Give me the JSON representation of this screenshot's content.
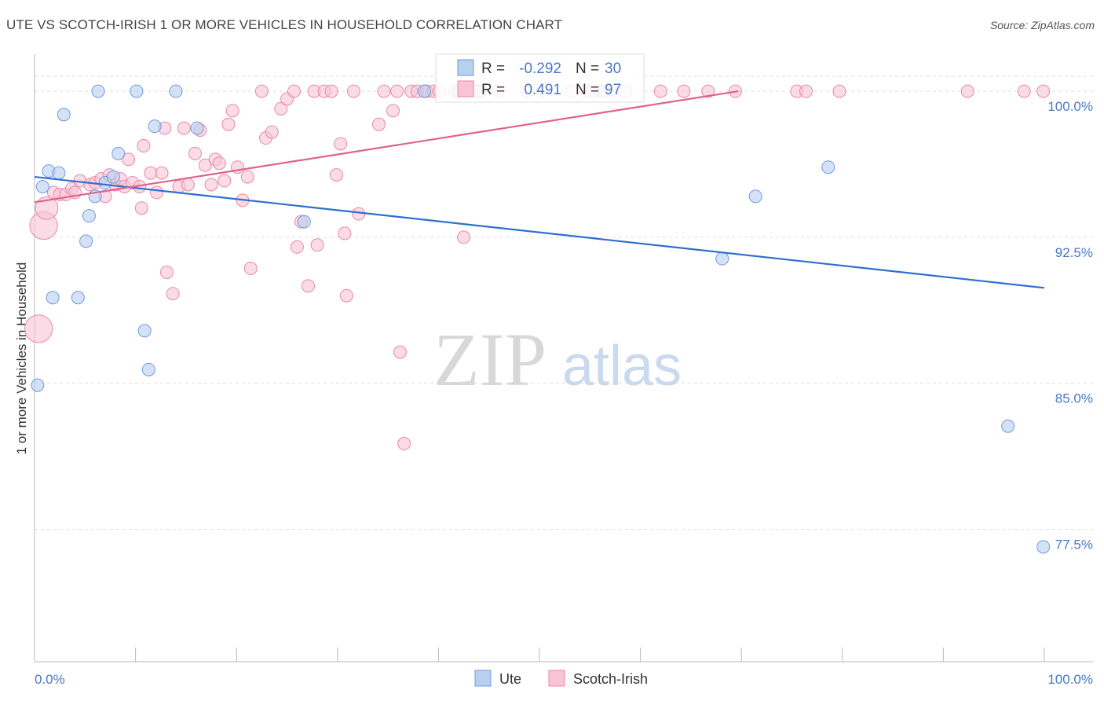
{
  "title": "UTE VS SCOTCH-IRISH 1 OR MORE VEHICLES IN HOUSEHOLD CORRELATION CHART",
  "source": "Source: ZipAtlas.com",
  "watermark": {
    "zip": "ZIP",
    "atlas": "atlas"
  },
  "colors": {
    "ute": "#6f9be0",
    "ute_fill": "#b9cff0",
    "ute_line": "#2e6fd0",
    "scotch": "#e889aa",
    "scotch_fill": "#f7c3d5",
    "scotch_line": "#e0628f",
    "grid": "#dddddd",
    "axis_text": "#4a78c7"
  },
  "legend": {
    "rows": [
      {
        "r_label": "R =",
        "r_value": "-0.292",
        "n_label": "N =",
        "n_value": "30"
      },
      {
        "r_label": "R =",
        "r_value": "0.491",
        "n_label": "N =",
        "n_value": "97"
      }
    ]
  },
  "chart_data": {
    "type": "scatter",
    "title": "UTE VS SCOTCH-IRISH 1 OR MORE VEHICLES IN HOUSEHOLD CORRELATION CHART",
    "xlabel": "",
    "ylabel": "1 or more Vehicles in Household",
    "xlim": [
      0,
      100
    ],
    "ylim": [
      70.7,
      101.9
    ],
    "x_tick_labels": [
      "0.0%",
      "100.0%"
    ],
    "y_ticks": [
      77.5,
      85.0,
      92.5,
      100.0
    ],
    "y_tick_labels": [
      "77.5%",
      "85.0%",
      "92.5%",
      "100.0%"
    ],
    "grid": true,
    "legend_position": "bottom-center",
    "series": [
      {
        "name": "Ute",
        "trend": {
          "x": [
            0,
            100
          ],
          "y": [
            95.6,
            89.9
          ]
        },
        "points": [
          {
            "x": 0.3,
            "y": 84.9,
            "s": 1
          },
          {
            "x": 0.8,
            "y": 95.1,
            "s": 1
          },
          {
            "x": 1.4,
            "y": 95.9,
            "s": 1
          },
          {
            "x": 2.4,
            "y": 95.8,
            "s": 1
          },
          {
            "x": 1.8,
            "y": 89.4,
            "s": 1
          },
          {
            "x": 2.9,
            "y": 98.8,
            "s": 1
          },
          {
            "x": 5.1,
            "y": 92.3,
            "s": 1
          },
          {
            "x": 5.4,
            "y": 93.6,
            "s": 1
          },
          {
            "x": 4.3,
            "y": 89.4,
            "s": 1
          },
          {
            "x": 6.0,
            "y": 94.6,
            "s": 1
          },
          {
            "x": 6.3,
            "y": 100.0,
            "s": 1
          },
          {
            "x": 7.0,
            "y": 95.3,
            "s": 1
          },
          {
            "x": 7.8,
            "y": 95.6,
            "s": 1
          },
          {
            "x": 8.3,
            "y": 96.8,
            "s": 1
          },
          {
            "x": 10.1,
            "y": 100.0,
            "s": 1
          },
          {
            "x": 10.9,
            "y": 87.7,
            "s": 1
          },
          {
            "x": 11.3,
            "y": 85.7,
            "s": 1
          },
          {
            "x": 11.9,
            "y": 98.2,
            "s": 1
          },
          {
            "x": 14.0,
            "y": 100.0,
            "s": 1
          },
          {
            "x": 16.1,
            "y": 98.1,
            "s": 1
          },
          {
            "x": 26.7,
            "y": 93.3,
            "s": 1
          },
          {
            "x": 38.6,
            "y": 100.0,
            "s": 1
          },
          {
            "x": 42.0,
            "y": 100.0,
            "s": 1
          },
          {
            "x": 43.9,
            "y": 100.0,
            "s": 1
          },
          {
            "x": 56.3,
            "y": 100.0,
            "s": 1
          },
          {
            "x": 68.1,
            "y": 91.4,
            "s": 1
          },
          {
            "x": 71.4,
            "y": 94.6,
            "s": 1
          },
          {
            "x": 78.6,
            "y": 96.1,
            "s": 1
          },
          {
            "x": 96.4,
            "y": 82.8,
            "s": 1
          },
          {
            "x": 99.9,
            "y": 76.6,
            "s": 1
          }
        ]
      },
      {
        "name": "Scotch-Irish",
        "trend": {
          "x": [
            0,
            69.7
          ],
          "y": [
            94.3,
            100.0
          ]
        },
        "points": [
          {
            "x": 0.4,
            "y": 87.8,
            "s": 2.2
          },
          {
            "x": 0.9,
            "y": 93.1,
            "s": 2.2
          },
          {
            "x": 1.2,
            "y": 94.0,
            "s": 1.8
          },
          {
            "x": 1.9,
            "y": 94.8,
            "s": 1
          },
          {
            "x": 2.5,
            "y": 94.7,
            "s": 1
          },
          {
            "x": 3.1,
            "y": 94.7,
            "s": 1
          },
          {
            "x": 3.7,
            "y": 95.0,
            "s": 1
          },
          {
            "x": 4.0,
            "y": 94.8,
            "s": 1
          },
          {
            "x": 4.5,
            "y": 95.4,
            "s": 1
          },
          {
            "x": 5.5,
            "y": 95.2,
            "s": 1
          },
          {
            "x": 6.0,
            "y": 95.3,
            "s": 1
          },
          {
            "x": 6.6,
            "y": 95.5,
            "s": 1
          },
          {
            "x": 7.0,
            "y": 94.6,
            "s": 1
          },
          {
            "x": 7.4,
            "y": 95.7,
            "s": 1
          },
          {
            "x": 8.0,
            "y": 95.2,
            "s": 1
          },
          {
            "x": 8.5,
            "y": 95.5,
            "s": 1
          },
          {
            "x": 8.9,
            "y": 95.1,
            "s": 1
          },
          {
            "x": 9.3,
            "y": 96.5,
            "s": 1
          },
          {
            "x": 9.7,
            "y": 95.3,
            "s": 1
          },
          {
            "x": 10.4,
            "y": 95.1,
            "s": 1
          },
          {
            "x": 10.6,
            "y": 94.0,
            "s": 1
          },
          {
            "x": 10.8,
            "y": 97.2,
            "s": 1
          },
          {
            "x": 11.5,
            "y": 95.8,
            "s": 1
          },
          {
            "x": 12.1,
            "y": 94.8,
            "s": 1
          },
          {
            "x": 12.6,
            "y": 95.8,
            "s": 1
          },
          {
            "x": 12.9,
            "y": 98.1,
            "s": 1
          },
          {
            "x": 13.1,
            "y": 90.7,
            "s": 1
          },
          {
            "x": 13.7,
            "y": 89.6,
            "s": 1
          },
          {
            "x": 14.3,
            "y": 95.1,
            "s": 1
          },
          {
            "x": 14.8,
            "y": 98.1,
            "s": 1
          },
          {
            "x": 15.2,
            "y": 95.2,
            "s": 1
          },
          {
            "x": 15.9,
            "y": 96.8,
            "s": 1
          },
          {
            "x": 16.4,
            "y": 98.0,
            "s": 1
          },
          {
            "x": 16.9,
            "y": 96.2,
            "s": 1
          },
          {
            "x": 17.5,
            "y": 95.2,
            "s": 1
          },
          {
            "x": 17.9,
            "y": 96.5,
            "s": 1
          },
          {
            "x": 18.3,
            "y": 96.3,
            "s": 1
          },
          {
            "x": 18.8,
            "y": 95.4,
            "s": 1
          },
          {
            "x": 19.2,
            "y": 98.3,
            "s": 1
          },
          {
            "x": 19.6,
            "y": 99.0,
            "s": 1
          },
          {
            "x": 20.1,
            "y": 96.1,
            "s": 1
          },
          {
            "x": 20.6,
            "y": 94.4,
            "s": 1
          },
          {
            "x": 21.1,
            "y": 95.6,
            "s": 1
          },
          {
            "x": 21.4,
            "y": 90.9,
            "s": 1
          },
          {
            "x": 22.5,
            "y": 100.0,
            "s": 1
          },
          {
            "x": 22.9,
            "y": 97.6,
            "s": 1
          },
          {
            "x": 23.5,
            "y": 97.9,
            "s": 1
          },
          {
            "x": 24.4,
            "y": 99.1,
            "s": 1
          },
          {
            "x": 25.0,
            "y": 99.6,
            "s": 1
          },
          {
            "x": 25.7,
            "y": 100.0,
            "s": 1
          },
          {
            "x": 26.0,
            "y": 92.0,
            "s": 1
          },
          {
            "x": 26.4,
            "y": 93.3,
            "s": 1
          },
          {
            "x": 27.1,
            "y": 90.0,
            "s": 1
          },
          {
            "x": 27.7,
            "y": 100.0,
            "s": 1
          },
          {
            "x": 28.0,
            "y": 92.1,
            "s": 1
          },
          {
            "x": 28.7,
            "y": 100.0,
            "s": 1
          },
          {
            "x": 29.4,
            "y": 100.0,
            "s": 1
          },
          {
            "x": 29.9,
            "y": 95.7,
            "s": 1
          },
          {
            "x": 30.3,
            "y": 97.3,
            "s": 1
          },
          {
            "x": 30.7,
            "y": 92.7,
            "s": 1
          },
          {
            "x": 30.9,
            "y": 89.5,
            "s": 1
          },
          {
            "x": 31.6,
            "y": 100.0,
            "s": 1
          },
          {
            "x": 32.1,
            "y": 93.7,
            "s": 1
          },
          {
            "x": 34.1,
            "y": 98.3,
            "s": 1
          },
          {
            "x": 34.6,
            "y": 100.0,
            "s": 1
          },
          {
            "x": 35.5,
            "y": 99.0,
            "s": 1
          },
          {
            "x": 35.9,
            "y": 100.0,
            "s": 1
          },
          {
            "x": 36.2,
            "y": 86.6,
            "s": 1
          },
          {
            "x": 36.6,
            "y": 81.9,
            "s": 1
          },
          {
            "x": 37.3,
            "y": 100.0,
            "s": 1
          },
          {
            "x": 37.9,
            "y": 100.0,
            "s": 1
          },
          {
            "x": 38.8,
            "y": 100.0,
            "s": 1
          },
          {
            "x": 39.5,
            "y": 100.0,
            "s": 1
          },
          {
            "x": 40.1,
            "y": 100.0,
            "s": 1
          },
          {
            "x": 41.6,
            "y": 100.0,
            "s": 1
          },
          {
            "x": 42.5,
            "y": 92.5,
            "s": 1
          },
          {
            "x": 43.6,
            "y": 100.0,
            "s": 1
          },
          {
            "x": 44.2,
            "y": 100.0,
            "s": 1
          },
          {
            "x": 48.8,
            "y": 100.0,
            "s": 1
          },
          {
            "x": 54.6,
            "y": 100.0,
            "s": 1
          },
          {
            "x": 55.3,
            "y": 100.0,
            "s": 1
          },
          {
            "x": 56.1,
            "y": 100.0,
            "s": 1
          },
          {
            "x": 57.2,
            "y": 100.0,
            "s": 1
          },
          {
            "x": 58.5,
            "y": 100.0,
            "s": 1
          },
          {
            "x": 64.3,
            "y": 100.0,
            "s": 1
          },
          {
            "x": 66.7,
            "y": 100.0,
            "s": 1
          },
          {
            "x": 69.4,
            "y": 100.0,
            "s": 1
          },
          {
            "x": 75.5,
            "y": 100.0,
            "s": 1
          },
          {
            "x": 76.4,
            "y": 100.0,
            "s": 1
          },
          {
            "x": 79.7,
            "y": 100.0,
            "s": 1
          },
          {
            "x": 92.4,
            "y": 100.0,
            "s": 1
          },
          {
            "x": 99.9,
            "y": 100.0,
            "s": 1
          },
          {
            "x": 98.0,
            "y": 100.0,
            "s": 1
          },
          {
            "x": 53.2,
            "y": 100.0,
            "s": 1
          },
          {
            "x": 45.9,
            "y": 100.0,
            "s": 1
          },
          {
            "x": 50.3,
            "y": 100.0,
            "s": 1
          },
          {
            "x": 62.0,
            "y": 100.0,
            "s": 1
          }
        ]
      }
    ]
  }
}
